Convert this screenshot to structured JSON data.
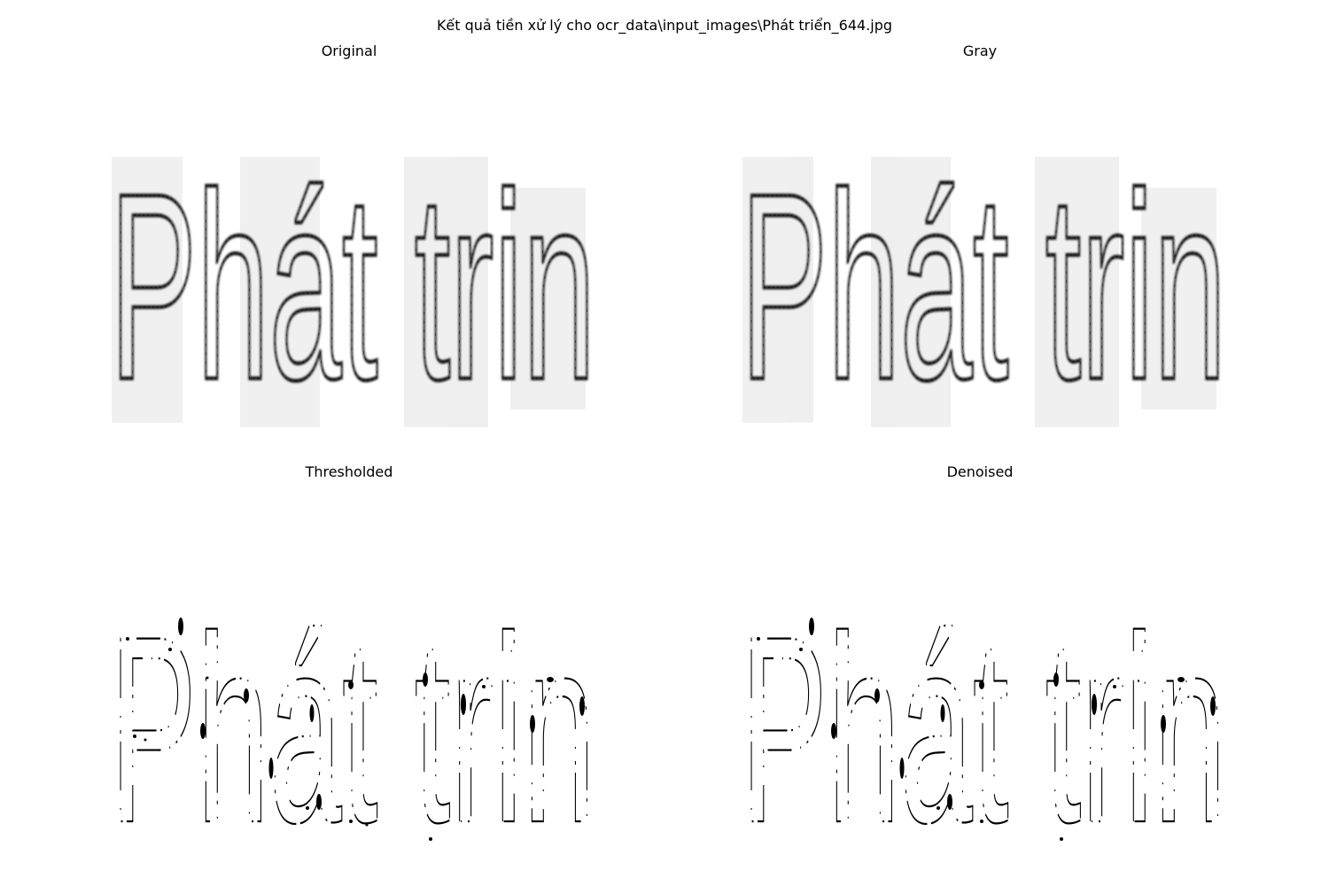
{
  "figure": {
    "title": "Kết quả tiền xử lý cho ocr_data\\input_images\\Phát triển_644.jpg"
  },
  "panels": [
    {
      "id": "original",
      "title": "Original",
      "style": "soft",
      "word": "Phát trin"
    },
    {
      "id": "gray",
      "title": "Gray",
      "style": "soft",
      "word": "Phát trin"
    },
    {
      "id": "thresholded",
      "title": "Thresholded",
      "style": "binary",
      "word": "Phát trin"
    },
    {
      "id": "denoised",
      "title": "Denoised",
      "style": "binary",
      "word": "Phát trin"
    }
  ],
  "colors": {
    "background": "#ffffff",
    "ink_soft": "#2a2a2a",
    "ink_binary": "#000000"
  }
}
